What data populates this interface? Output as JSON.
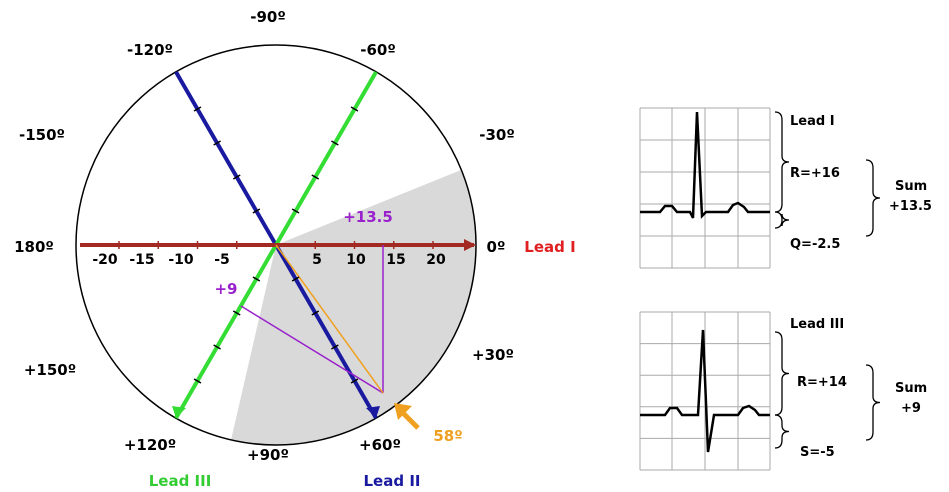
{
  "axis_labels": [
    "-90º",
    "-60º",
    "-30º",
    "0º",
    "+30º",
    "+60º",
    "+90º",
    "+120º",
    "+150º",
    "180º",
    "-150º",
    "-120º"
  ],
  "lead_labels": {
    "lead_i": "Lead I",
    "lead_ii": "Lead II",
    "lead_iii": "Lead III"
  },
  "scale_labels": [
    "-20",
    "-15",
    "-10",
    "-5",
    "5",
    "10",
    "15",
    "20"
  ],
  "annotations": {
    "lead_i_sum": "+13.5",
    "lead_iii_sum": "+9",
    "axis_angle": "58º"
  },
  "ecg_panels": [
    {
      "lead": "Lead I",
      "labels": [
        "R=+16",
        "Q=-2.5"
      ],
      "sum_label": "Sum",
      "sum": "+13.5"
    },
    {
      "lead": "Lead III",
      "labels": [
        "R=+14",
        "S=-5"
      ],
      "sum_label": "Sum",
      "sum": "+9"
    }
  ]
}
